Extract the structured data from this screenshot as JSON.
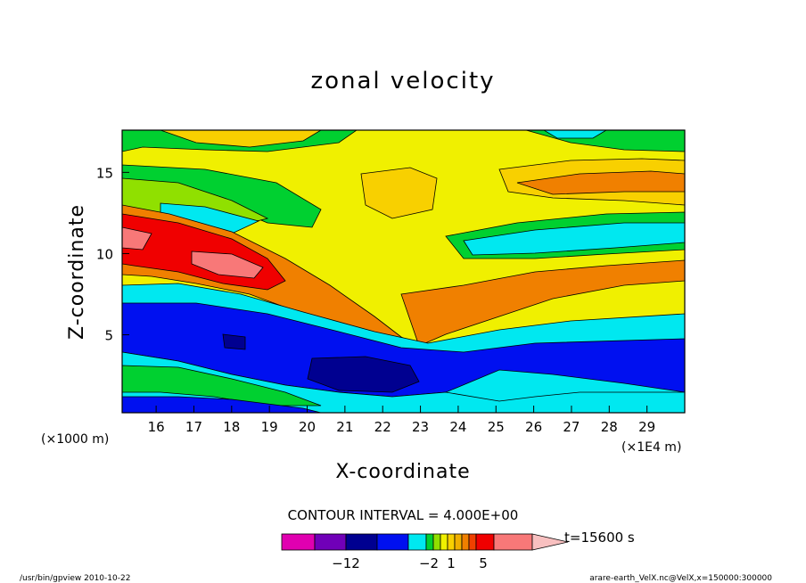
{
  "chart_data": {
    "type": "heatmap",
    "title": "zonal velocity",
    "xlabel": "X-coordinate",
    "ylabel": "Z-coordinate",
    "x_unit_left": "(×1000 m)",
    "x_unit_right": "(×1E4 m)",
    "x_ticks": [
      "16",
      "17",
      "18",
      "19",
      "20",
      "21",
      "22",
      "23",
      "24",
      "25",
      "26",
      "27",
      "28",
      "29"
    ],
    "x_tick_values": [
      16,
      17,
      18,
      19,
      20,
      21,
      22,
      23,
      24,
      25,
      26,
      27,
      28,
      29
    ],
    "y_ticks": [
      "5",
      "10",
      "15"
    ],
    "y_tick_values": [
      5,
      10,
      15
    ],
    "xlim": [
      15.1,
      30.0
    ],
    "ylim": [
      0.2,
      17.6
    ],
    "contour_interval": "CONTOUR INTERVAL = 4.000E+00",
    "time_label": "t=15600 s",
    "colorbar_labels": [
      "−12",
      "−2",
      "1",
      "5"
    ],
    "colorbar_colors": [
      "#e000b0",
      "#7000b8",
      "#000090",
      "#0010f0",
      "#00e8f0",
      "#00d030",
      "#90e000",
      "#f0f000",
      "#f8d000",
      "#f0b000",
      "#f08000",
      "#f04000",
      "#f00000",
      "#f87878",
      "#f8c0c0"
    ],
    "footer_left": "/usr/bin/gpview  2010-10-22",
    "footer_right": "arare-earth_VelX.nc@VelX,x=150000:300000"
  }
}
